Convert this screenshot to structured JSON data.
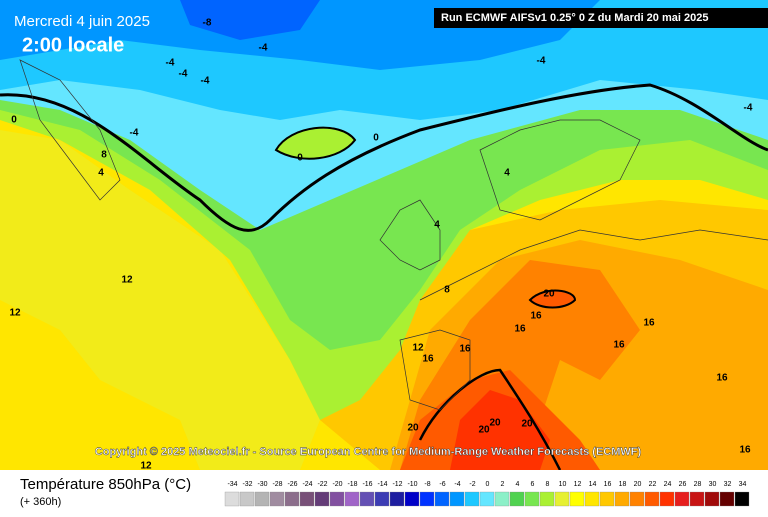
{
  "header": {
    "title": "Mercredi 4 juin 2025",
    "subtitle": "2:00 locale",
    "run": "Run ECMWF AIFSv1 0.25° 0 Z du Mardi 20 mai 2025"
  },
  "footer": {
    "copyright": "Copyright © 2025 Meteociel.fr - Source European Centre for Medium-Range Weather Forecasts (ECMWF)"
  },
  "legend": {
    "title": "Température 850hPa (°C)",
    "forecast": "(+ 360h)",
    "scale": [
      -34,
      -32,
      -30,
      -28,
      -26,
      -24,
      -22,
      -20,
      -18,
      -16,
      -14,
      -12,
      -10,
      -8,
      -6,
      -4,
      -2,
      0,
      2,
      4,
      6,
      8,
      10,
      12,
      14,
      16,
      18,
      20,
      22,
      24,
      26,
      28,
      30,
      32,
      34
    ],
    "colors": [
      "#dcdcdc",
      "#c8c8c8",
      "#b4b4b4",
      "#a08ca0",
      "#8c6e8c",
      "#785078",
      "#643c78",
      "#8250a0",
      "#a064c8",
      "#6450b4",
      "#3c3cb4",
      "#1e1ea0",
      "#0000c8",
      "#0032ff",
      "#0064ff",
      "#0096ff",
      "#1ec8ff",
      "#64e6ff",
      "#8cf0c8",
      "#50d250",
      "#78e650",
      "#aaf032",
      "#e6f032",
      "#ffff00",
      "#ffe600",
      "#ffc800",
      "#ffaa00",
      "#ff8200",
      "#ff5a00",
      "#ff3200",
      "#e61e1e",
      "#c81414",
      "#a00a0a",
      "#640000",
      "#000000"
    ]
  },
  "contour_labels": [
    -8,
    -4,
    -4,
    -4,
    -4,
    -4,
    -4,
    0,
    -4,
    0,
    0,
    8,
    4,
    4,
    4,
    12,
    12,
    8,
    20,
    16,
    16,
    16,
    16,
    12,
    16,
    16,
    16,
    20,
    20,
    20,
    20,
    12,
    16
  ]
}
